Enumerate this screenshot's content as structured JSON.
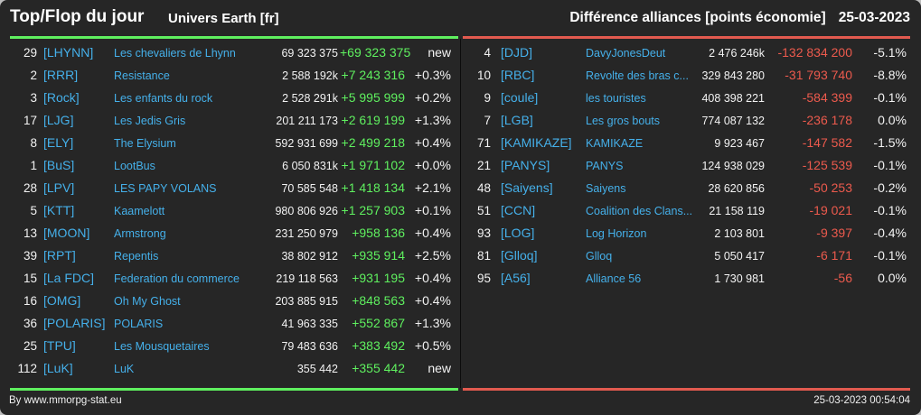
{
  "header": {
    "title": "Top/Flop du jour",
    "subtitle": "Univers Earth [fr]",
    "metric": "Différence alliances [points économie]",
    "date": "25-03-2023"
  },
  "colors": {
    "positive": "#5ff05f",
    "negative": "#ec5a4d",
    "link": "#45b0ea",
    "background": "#262626"
  },
  "top": [
    {
      "rank": "29",
      "tag": "[LHYNN]",
      "name": "Les chevaliers de Lhynn",
      "points": "69 323 375",
      "diff": "+69 323 375",
      "pct": "new"
    },
    {
      "rank": "2",
      "tag": "[RRR]",
      "name": "Resistance",
      "points": "2 588 192k",
      "diff": "+7 243 316",
      "pct": "+0.3%"
    },
    {
      "rank": "3",
      "tag": "[Rock]",
      "name": "Les enfants du rock",
      "points": "2 528 291k",
      "diff": "+5 995 999",
      "pct": "+0.2%"
    },
    {
      "rank": "17",
      "tag": "[LJG]",
      "name": "Les Jedis Gris",
      "points": "201 211 173",
      "diff": "+2 619 199",
      "pct": "+1.3%"
    },
    {
      "rank": "8",
      "tag": "[ELY]",
      "name": "The Elysium",
      "points": "592 931 699",
      "diff": "+2 499 218",
      "pct": "+0.4%"
    },
    {
      "rank": "1",
      "tag": "[BuS]",
      "name": "LootBus",
      "points": "6 050 831k",
      "diff": "+1 971 102",
      "pct": "+0.0%"
    },
    {
      "rank": "28",
      "tag": "[LPV]",
      "name": "LES PAPY VOLANS",
      "points": "70 585 548",
      "diff": "+1 418 134",
      "pct": "+2.1%"
    },
    {
      "rank": "5",
      "tag": "[KTT]",
      "name": "Kaamelott",
      "points": "980 806 926",
      "diff": "+1 257 903",
      "pct": "+0.1%"
    },
    {
      "rank": "13",
      "tag": "[MOON]",
      "name": "Armstrong",
      "points": "231 250 979",
      "diff": "+958 136",
      "pct": "+0.4%"
    },
    {
      "rank": "39",
      "tag": "[RPT]",
      "name": "Repentis",
      "points": "38 802 912",
      "diff": "+935 914",
      "pct": "+2.5%"
    },
    {
      "rank": "15",
      "tag": "[La FDC]",
      "name": "Federation du commerce",
      "points": "219 118 563",
      "diff": "+931 195",
      "pct": "+0.4%"
    },
    {
      "rank": "16",
      "tag": "[OMG]",
      "name": "Oh My Ghost",
      "points": "203 885 915",
      "diff": "+848 563",
      "pct": "+0.4%"
    },
    {
      "rank": "36",
      "tag": "[POLARIS]",
      "name": "POLARIS",
      "points": "41 963 335",
      "diff": "+552 867",
      "pct": "+1.3%"
    },
    {
      "rank": "25",
      "tag": "[TPU]",
      "name": "Les Mousquetaires",
      "points": "79 483 636",
      "diff": "+383 492",
      "pct": "+0.5%"
    },
    {
      "rank": "112",
      "tag": "[LuK]",
      "name": "LuK",
      "points": "355 442",
      "diff": "+355 442",
      "pct": "new"
    }
  ],
  "flop": [
    {
      "rank": "4",
      "tag": "[DJD]",
      "name": "DavyJonesDeut",
      "points": "2 476 246k",
      "diff": "-132 834 200",
      "pct": "-5.1%"
    },
    {
      "rank": "10",
      "tag": "[RBC]",
      "name": "Revolte des bras c...",
      "points": "329 843 280",
      "diff": "-31 793 740",
      "pct": "-8.8%"
    },
    {
      "rank": "9",
      "tag": "[coule]",
      "name": "les touristes",
      "points": "408 398 221",
      "diff": "-584 399",
      "pct": "-0.1%"
    },
    {
      "rank": "7",
      "tag": "[LGB]",
      "name": "Les gros bouts",
      "points": "774 087 132",
      "diff": "-236 178",
      "pct": "0.0%"
    },
    {
      "rank": "71",
      "tag": "[KAMIKAZE]",
      "name": "KAMIKAZE",
      "points": "9 923 467",
      "diff": "-147 582",
      "pct": "-1.5%"
    },
    {
      "rank": "21",
      "tag": "[PANYS]",
      "name": "PANYS",
      "points": "124 938 029",
      "diff": "-125 539",
      "pct": "-0.1%"
    },
    {
      "rank": "48",
      "tag": "[Saiyens]",
      "name": "Saiyens",
      "points": "28 620 856",
      "diff": "-50 253",
      "pct": "-0.2%"
    },
    {
      "rank": "51",
      "tag": "[CCN]",
      "name": "Coalition des Clans...",
      "points": "21 158 119",
      "diff": "-19 021",
      "pct": "-0.1%"
    },
    {
      "rank": "93",
      "tag": "[LOG]",
      "name": "Log Horizon",
      "points": "2 103 801",
      "diff": "-9 397",
      "pct": "-0.4%"
    },
    {
      "rank": "81",
      "tag": "[Glloq]",
      "name": "Glloq",
      "points": "5 050 417",
      "diff": "-6 171",
      "pct": "-0.1%"
    },
    {
      "rank": "95",
      "tag": "[A56]",
      "name": "Alliance 56",
      "points": "1 730 981",
      "diff": "-56",
      "pct": "0.0%"
    }
  ],
  "footer": {
    "credit": "By www.mmorpg-stat.eu",
    "timestamp": "25-03-2023 00:54:04"
  }
}
